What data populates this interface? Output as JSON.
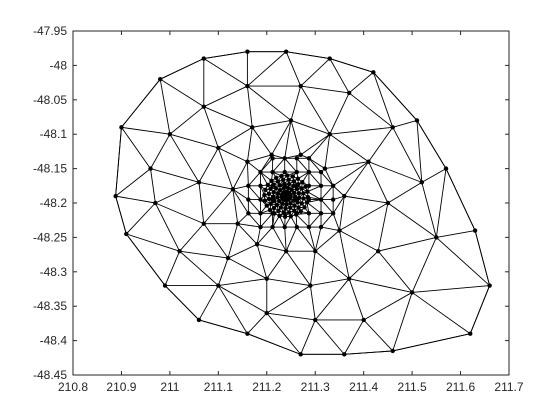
{
  "chart_data": {
    "type": "scatter",
    "title": "",
    "xlabel": "",
    "ylabel": "",
    "xlim": [
      210.8,
      211.7
    ],
    "ylim": [
      -48.45,
      -47.95
    ],
    "grid": false,
    "legend": "none",
    "xticks": [
      210.8,
      210.9,
      211,
      211.1,
      211.2,
      211.3,
      211.4,
      211.5,
      211.6,
      211.7
    ],
    "xtick_labels": [
      "210.8",
      "210.9",
      "211",
      "211.1",
      "211.2",
      "211.3",
      "211.4",
      "211.5",
      "211.6",
      "211.7"
    ],
    "yticks": [
      -47.95,
      -48,
      -48.05,
      -48.1,
      -48.15,
      -48.2,
      -48.25,
      -48.3,
      -48.35,
      -48.4,
      -48.45
    ],
    "ytick_labels": [
      "-47.95",
      "-48",
      "-48.05",
      "-48.1",
      "-48.15",
      "-48.2",
      "-48.25",
      "-48.3",
      "-48.35",
      "-48.4",
      "-48.45"
    ],
    "mesh_color": "#000000",
    "series": [
      {
        "boundary": [
          [
            210.888,
            -48.19
          ],
          [
            210.9,
            -48.09
          ],
          [
            210.98,
            -48.02
          ],
          [
            211.07,
            -47.99
          ],
          [
            211.16,
            -47.98
          ],
          [
            211.24,
            -47.98
          ],
          [
            211.33,
            -47.99
          ],
          [
            211.42,
            -48.01
          ],
          [
            211.51,
            -48.08
          ],
          [
            211.57,
            -48.15
          ],
          [
            211.63,
            -48.24
          ],
          [
            211.66,
            -48.32
          ],
          [
            211.62,
            -48.39
          ],
          [
            211.46,
            -48.415
          ],
          [
            211.36,
            -48.42
          ],
          [
            211.27,
            -48.42
          ],
          [
            211.16,
            -48.39
          ],
          [
            211.06,
            -48.37
          ],
          [
            210.99,
            -48.32
          ],
          [
            210.91,
            -48.245
          ]
        ],
        "middle_ring": [
          [
            211.0,
            -48.1
          ],
          [
            211.07,
            -48.06
          ],
          [
            211.16,
            -48.03
          ],
          [
            211.27,
            -48.03
          ],
          [
            211.37,
            -48.04
          ],
          [
            211.46,
            -48.09
          ],
          [
            211.52,
            -48.17
          ],
          [
            211.55,
            -48.25
          ],
          [
            211.5,
            -48.33
          ],
          [
            211.4,
            -48.37
          ],
          [
            211.3,
            -48.37
          ],
          [
            211.2,
            -48.36
          ],
          [
            211.1,
            -48.32
          ],
          [
            211.02,
            -48.27
          ],
          [
            210.97,
            -48.2
          ],
          [
            210.96,
            -48.15
          ]
        ],
        "inner_ring": [
          [
            211.06,
            -48.17
          ],
          [
            211.1,
            -48.12
          ],
          [
            211.17,
            -48.09
          ],
          [
            211.25,
            -48.08
          ],
          [
            211.33,
            -48.1
          ],
          [
            211.41,
            -48.14
          ],
          [
            211.45,
            -48.2
          ],
          [
            211.43,
            -48.27
          ],
          [
            211.37,
            -48.31
          ],
          [
            211.29,
            -48.32
          ],
          [
            211.2,
            -48.31
          ],
          [
            211.12,
            -48.28
          ],
          [
            211.07,
            -48.23
          ]
        ],
        "refined_ring": [
          [
            211.13,
            -48.18
          ],
          [
            211.16,
            -48.14
          ],
          [
            211.21,
            -48.13
          ],
          [
            211.27,
            -48.13
          ],
          [
            211.32,
            -48.15
          ],
          [
            211.36,
            -48.19
          ],
          [
            211.35,
            -48.24
          ],
          [
            211.3,
            -48.27
          ],
          [
            211.24,
            -48.27
          ],
          [
            211.18,
            -48.26
          ],
          [
            211.14,
            -48.23
          ]
        ],
        "dense_cluster": {
          "center": [
            211.24,
            -48.19
          ],
          "x_radius": 0.045,
          "y_radius": 0.03
        }
      }
    ]
  }
}
